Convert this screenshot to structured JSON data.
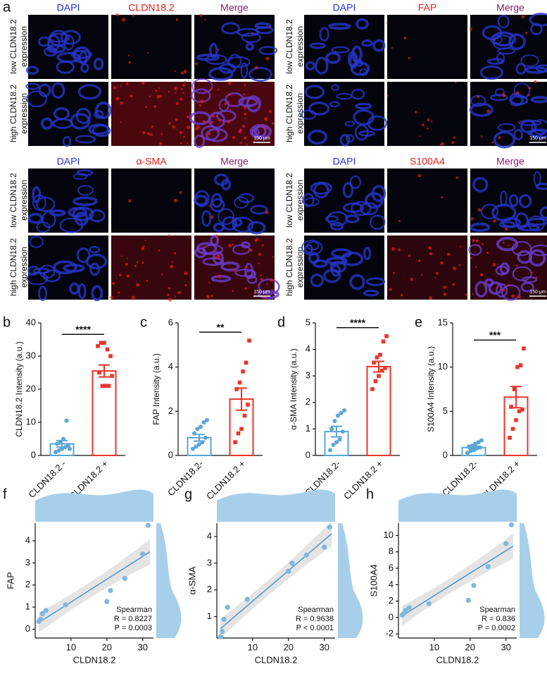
{
  "panel_a": {
    "label": "a",
    "row_labels": [
      [
        "low CLDN18.2",
        "expression"
      ],
      [
        "high CLDN18.2",
        "expression"
      ]
    ],
    "groups": [
      {
        "channels": [
          "DAPI",
          "CLDN18.2",
          "Merge"
        ],
        "scale_bar": "150 μm"
      },
      {
        "channels": [
          "DAPI",
          "FAP",
          "Merge"
        ],
        "scale_bar": "150 μm"
      },
      {
        "channels": [
          "DAPI",
          "α-SMA",
          "Merge"
        ],
        "scale_bar": "150 μm"
      },
      {
        "channels": [
          "DAPI",
          "S100A4",
          "Merge"
        ],
        "scale_bar": "150 μm"
      }
    ]
  },
  "chart_data": [
    {
      "type": "bar",
      "panel": "b",
      "y_label": "CLDN18.2   Intensity (a.u.)",
      "categories": [
        "CLDN18.2 -",
        "CLDN18.2 +"
      ],
      "values": [
        3.5,
        25.5
      ],
      "errors": [
        1.0,
        1.8
      ],
      "colors": [
        "#5aa6d6",
        "#e8352a"
      ],
      "markers": [
        "circle",
        "square"
      ],
      "points": [
        [
          1,
          1.5,
          2,
          2.5,
          3,
          3.5,
          4,
          5,
          10.5,
          2
        ],
        [
          33,
          34,
          34,
          32,
          30,
          25,
          21,
          21,
          21,
          24
        ]
      ],
      "significance": "****",
      "ylim": [
        0,
        40
      ],
      "yticks": [
        0,
        10,
        20,
        30,
        40
      ]
    },
    {
      "type": "bar",
      "panel": "c",
      "y_label": "FAP Intensity (a.u.)",
      "categories": [
        "CLDN18.2-",
        "CLDN18.2 +"
      ],
      "values": [
        0.8,
        2.55
      ],
      "errors": [
        0.15,
        0.5
      ],
      "colors": [
        "#5aa6d6",
        "#e8352a"
      ],
      "markers": [
        "circle",
        "square"
      ],
      "points": [
        [
          0.3,
          0.4,
          0.5,
          0.6,
          0.8,
          1.0,
          1.2,
          1.3,
          1.5,
          1.6
        ],
        [
          0.6,
          1.0,
          1.2,
          1.8,
          2.3,
          3.0,
          3.3,
          3.8,
          4.2,
          5.2
        ]
      ],
      "significance": "**",
      "ylim": [
        0,
        6
      ],
      "yticks": [
        0,
        2,
        4,
        6
      ]
    },
    {
      "type": "bar",
      "panel": "d",
      "y_label": "α-SMA Intensity (a.u.)",
      "categories": [
        "CLDN18.2-",
        "CLDN18.2 +"
      ],
      "values": [
        0.9,
        3.35
      ],
      "errors": [
        0.2,
        0.2
      ],
      "colors": [
        "#5aa6d6",
        "#e8352a"
      ],
      "markers": [
        "circle",
        "square"
      ],
      "points": [
        [
          0.2,
          0.4,
          0.5,
          0.6,
          0.9,
          1.0,
          1.3,
          1.5,
          1.6,
          1.7
        ],
        [
          2.5,
          2.8,
          3.0,
          3.2,
          3.3,
          3.5,
          3.7,
          3.8,
          4.3,
          4.5
        ]
      ],
      "significance": "****",
      "ylim": [
        0,
        5
      ],
      "yticks": [
        0,
        1,
        2,
        3,
        4,
        5
      ]
    },
    {
      "type": "bar",
      "panel": "e",
      "y_label": "S100A4 Intensity (a.u.)",
      "categories": [
        "CLDN18.2-",
        "CLDN18.2 +"
      ],
      "values": [
        0.9,
        6.6
      ],
      "errors": [
        0.15,
        1.2
      ],
      "colors": [
        "#5aa6d6",
        "#e8352a"
      ],
      "markers": [
        "circle",
        "square"
      ],
      "points": [
        [
          0.3,
          0.5,
          0.6,
          0.8,
          0.9,
          1.0,
          1.1,
          1.3,
          1.5,
          1.7
        ],
        [
          2.0,
          3.0,
          4.0,
          5.0,
          5.2,
          5.5,
          7.5,
          10.0,
          10.2,
          12.1
        ]
      ],
      "significance": "***",
      "ylim": [
        0,
        15
      ],
      "yticks": [
        0,
        5,
        10,
        15
      ]
    },
    {
      "type": "scatter",
      "panel": "f",
      "x_label": "CLDN18.2",
      "y_label": "FAP",
      "color": "#7fb8e0",
      "x": [
        1,
        1.5,
        2,
        3,
        8.5,
        20,
        21,
        25,
        30,
        31.5
      ],
      "y": [
        0.35,
        0.45,
        0.7,
        0.85,
        1.1,
        1.25,
        1.75,
        2.3,
        3.4,
        4.7
      ],
      "fit": {
        "x": [
          1,
          32
        ],
        "y": [
          0.3,
          3.5
        ]
      },
      "annotations": [
        "Spearman",
        "R = 0.8227",
        "P = 0.0003"
      ],
      "xlim": [
        0,
        33
      ],
      "xticks": [
        10,
        20,
        30
      ],
      "ylim": [
        -0.4,
        4.8
      ],
      "yticks": [
        0,
        1,
        2,
        3,
        4
      ]
    },
    {
      "type": "scatter",
      "panel": "g",
      "x_label": "CLDN18.2",
      "y_label": "α-SMA",
      "color": "#7fb8e0",
      "x": [
        1,
        1.5,
        2,
        3,
        8.5,
        20,
        21,
        25,
        30,
        31.5
      ],
      "y": [
        0.25,
        0.45,
        0.9,
        1.35,
        1.65,
        2.7,
        3.0,
        3.3,
        3.6,
        4.35
      ],
      "fit": {
        "x": [
          1,
          32
        ],
        "y": [
          0.55,
          4.1
        ]
      },
      "annotations": [
        "Spearman",
        "R = 0.9638",
        "P < 0.0001"
      ],
      "xlim": [
        0,
        33
      ],
      "xticks": [
        10,
        20,
        30
      ],
      "ylim": [
        0.2,
        4.5
      ],
      "yticks": [
        1,
        2,
        3,
        4
      ]
    },
    {
      "type": "scatter",
      "panel": "h",
      "x_label": "CLDN18.2",
      "y_label": "S100A4",
      "color": "#7fb8e0",
      "x": [
        1,
        1.5,
        2,
        3,
        8.5,
        19.5,
        21,
        25,
        30,
        31.5
      ],
      "y": [
        0.3,
        0.5,
        0.9,
        1.2,
        1.7,
        2.1,
        3.9,
        6.2,
        9.0,
        11.3
      ],
      "fit": {
        "x": [
          1,
          32
        ],
        "y": [
          0.2,
          8.7
        ]
      },
      "annotations": [
        "Spearman",
        "R = 0.836",
        "P = 0.0002"
      ],
      "xlim": [
        0,
        33
      ],
      "xticks": [
        10,
        20,
        30
      ],
      "ylim": [
        -2.5,
        11.5
      ],
      "yticks": [
        -2,
        0,
        2,
        4,
        6,
        8,
        10
      ]
    }
  ]
}
